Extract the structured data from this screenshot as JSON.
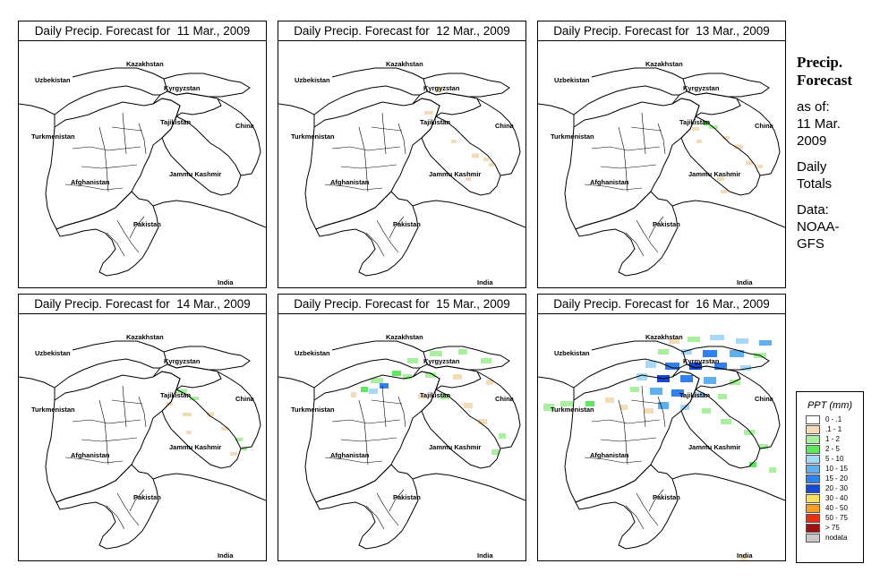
{
  "sidebar": {
    "title_line1": "Precip.",
    "title_line2": "Forecast",
    "asof_line1": "as of:",
    "asof_line2": "11 Mar.",
    "asof_line3": "2009",
    "totals_line1": "Daily",
    "totals_line2": "Totals",
    "data_line1": "Data:",
    "data_line2": "NOAA-",
    "data_line3": "GFS"
  },
  "places": {
    "uzbekistan": "Uzbekistan",
    "kazakhstan": "Kazakhstan",
    "kyrgyzstan": "Kyrgyzstan",
    "tajikistan": "Tajikistan",
    "china": "China",
    "turkmenistan": "Turkmenistan",
    "jammu_kashmir": "Jammu Kashmir",
    "afghanistan": "Afghanistan",
    "pakistan": "Pakistan",
    "india": "India"
  },
  "panels": [
    {
      "title": "Daily Precip. Forecast for  11 Mar., 2009",
      "date": "11 Mar., 2009",
      "precip_intensity": "none"
    },
    {
      "title": "Daily Precip. Forecast for  12 Mar., 2009",
      "date": "12 Mar., 2009",
      "precip_intensity": "trace"
    },
    {
      "title": "Daily Precip. Forecast for  13 Mar., 2009",
      "date": "13 Mar., 2009",
      "precip_intensity": "light"
    },
    {
      "title": "Daily Precip. Forecast for  14 Mar., 2009",
      "date": "14 Mar., 2009",
      "precip_intensity": "light"
    },
    {
      "title": "Daily Precip. Forecast for  15 Mar., 2009",
      "date": "15 Mar., 2009",
      "precip_intensity": "moderate"
    },
    {
      "title": "Daily Precip. Forecast for  16 Mar., 2009",
      "date": "16 Mar., 2009",
      "precip_intensity": "heavy"
    }
  ],
  "legend": {
    "title": "PPT (mm)",
    "items": [
      {
        "label": "0 - .1",
        "color": "#ffffff"
      },
      {
        "label": ".1 - 1",
        "color": "#f2dcb8"
      },
      {
        "label": "1 - 2",
        "color": "#a8f0a0"
      },
      {
        "label": "2 - 5",
        "color": "#5ee860"
      },
      {
        "label": "5 - 10",
        "color": "#a8d8f8"
      },
      {
        "label": "10 - 15",
        "color": "#60b0f0"
      },
      {
        "label": "15 - 20",
        "color": "#3080f0"
      },
      {
        "label": "20 - 30",
        "color": "#1848d8"
      },
      {
        "label": "30 - 40",
        "color": "#f8e060"
      },
      {
        "label": "40 - 50",
        "color": "#f8a020"
      },
      {
        "label": "50 - 75",
        "color": "#e83010"
      },
      {
        "label": "> 75",
        "color": "#a01010"
      },
      {
        "label": "nodata",
        "color": "#c8c8c8"
      }
    ]
  }
}
